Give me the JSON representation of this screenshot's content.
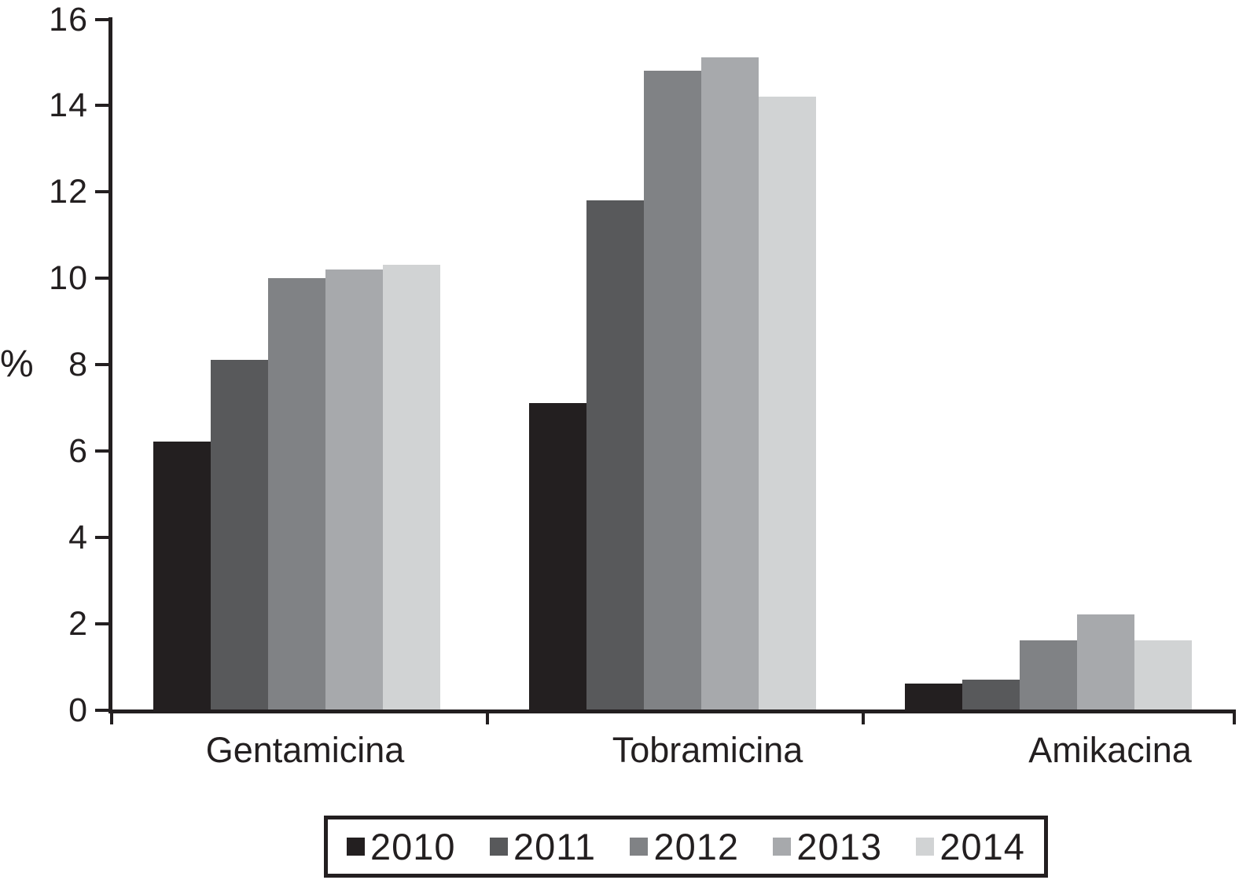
{
  "chart_data": {
    "type": "bar",
    "title": "",
    "xlabel": "",
    "ylabel": "%",
    "categories": [
      "Gentamicina",
      "Tobramicina",
      "Amikacina"
    ],
    "series": [
      {
        "name": "2010",
        "color": "#231F20",
        "values": [
          6.2,
          7.1,
          0.6
        ]
      },
      {
        "name": "2011",
        "color": "#58595B",
        "values": [
          8.1,
          11.8,
          0.7
        ]
      },
      {
        "name": "2012",
        "color": "#808285",
        "values": [
          10.0,
          14.8,
          1.6
        ]
      },
      {
        "name": "2013",
        "color": "#A7A9AC",
        "values": [
          10.2,
          15.1,
          2.2
        ]
      },
      {
        "name": "2014",
        "color": "#D1D3D4",
        "values": [
          10.3,
          14.2,
          1.6
        ]
      }
    ],
    "ylim": [
      0,
      16
    ],
    "ytick_step": 2,
    "yticks": [
      0,
      2,
      4,
      6,
      8,
      10,
      12,
      14,
      16
    ],
    "grid": false,
    "legend_position": "bottom",
    "axis_color": "#231F20",
    "background_color": "#FFFFFF"
  }
}
